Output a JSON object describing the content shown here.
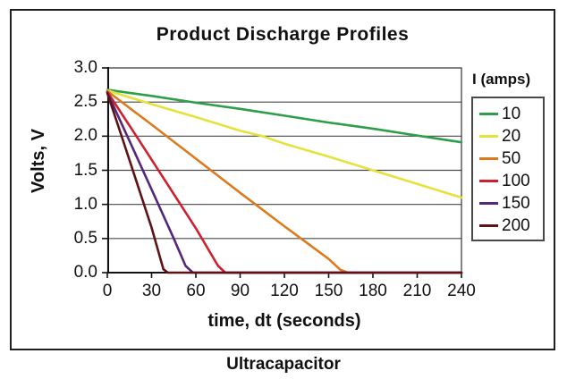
{
  "figure": {
    "caption": "Ultracapacitor"
  },
  "chart_data": {
    "type": "line",
    "title": "Product Discharge Profiles",
    "xlabel": "time, dt (seconds)",
    "ylabel": "Volts, V",
    "xlim": [
      0,
      240
    ],
    "ylim": [
      0.0,
      3.0
    ],
    "x_ticks": [
      0,
      30,
      60,
      90,
      120,
      150,
      180,
      210,
      240
    ],
    "y_ticks": [
      3.0,
      2.5,
      2.0,
      1.5,
      1.0,
      0.5,
      0.0
    ],
    "y_tick_labels": [
      "3.0",
      "2.5",
      "2.0",
      "1.5",
      "1.0",
      "0.5",
      "0.0"
    ],
    "grid": "horizontal gridlines at each 0.5 V",
    "legend_title": "I (amps)",
    "legend_position": "right",
    "axis_color": "#111111",
    "grid_color": "#4a4a4a",
    "series": [
      {
        "name": "10",
        "color": "#2e9e4b",
        "points": [
          [
            0,
            2.68
          ],
          [
            30,
            2.59
          ],
          [
            60,
            2.49
          ],
          [
            90,
            2.4
          ],
          [
            120,
            2.3
          ],
          [
            150,
            2.2
          ],
          [
            180,
            2.11
          ],
          [
            210,
            2.01
          ],
          [
            240,
            1.91
          ]
        ]
      },
      {
        "name": "20",
        "color": "#e4e23b",
        "points": [
          [
            0,
            2.67
          ],
          [
            30,
            2.47
          ],
          [
            60,
            2.28
          ],
          [
            90,
            2.08
          ],
          [
            105,
            2.0
          ],
          [
            120,
            1.89
          ],
          [
            150,
            1.7
          ],
          [
            180,
            1.5
          ],
          [
            210,
            1.3
          ],
          [
            240,
            1.1
          ]
        ]
      },
      {
        "name": "50",
        "color": "#dc7a1e",
        "points": [
          [
            0,
            2.66
          ],
          [
            30,
            2.17
          ],
          [
            60,
            1.67
          ],
          [
            90,
            1.17
          ],
          [
            120,
            0.68
          ],
          [
            150,
            0.2
          ],
          [
            158,
            0.04
          ],
          [
            163,
            0.0
          ],
          [
            240,
            0.0
          ]
        ]
      },
      {
        "name": "100",
        "color": "#cf1f2e",
        "points": [
          [
            0,
            2.65
          ],
          [
            20,
            1.99
          ],
          [
            40,
            1.32
          ],
          [
            60,
            0.65
          ],
          [
            75,
            0.1
          ],
          [
            80,
            0.0
          ],
          [
            240,
            0.0
          ]
        ]
      },
      {
        "name": "150",
        "color": "#55277b",
        "points": [
          [
            0,
            2.64
          ],
          [
            15,
            1.93
          ],
          [
            30,
            1.22
          ],
          [
            45,
            0.5
          ],
          [
            53,
            0.1
          ],
          [
            58,
            0.0
          ],
          [
            240,
            0.0
          ]
        ]
      },
      {
        "name": "200",
        "color": "#5f1216",
        "points": [
          [
            0,
            2.63
          ],
          [
            10,
            1.98
          ],
          [
            20,
            1.32
          ],
          [
            30,
            0.66
          ],
          [
            38,
            0.05
          ],
          [
            41,
            0.0
          ],
          [
            240,
            0.0
          ]
        ]
      }
    ]
  }
}
